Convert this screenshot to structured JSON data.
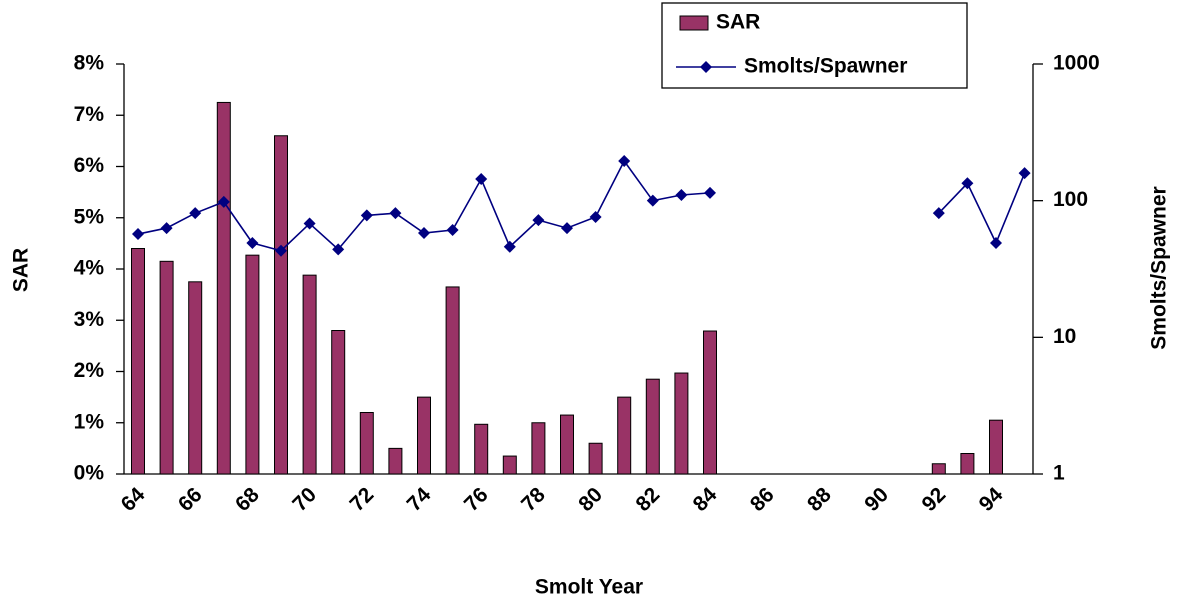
{
  "chart_data": {
    "type": "bar-line",
    "x_label": "Smolt Year",
    "y_label": "SAR",
    "y2_label": "Smolts/Spawner",
    "categories": [
      "64",
      null,
      "66",
      null,
      "68",
      null,
      "70",
      null,
      "72",
      null,
      "74",
      null,
      "76",
      null,
      "78",
      null,
      "80",
      null,
      "82",
      null,
      "84",
      null,
      "86",
      null,
      "88",
      null,
      "90",
      null,
      "92",
      null,
      "94",
      null
    ],
    "series": [
      {
        "name": "SAR",
        "type": "bar",
        "color": "#993366",
        "axis": "y",
        "values": [
          4.4,
          4.15,
          3.75,
          7.25,
          4.27,
          6.6,
          3.88,
          2.8,
          1.2,
          0.5,
          1.5,
          3.65,
          0.97,
          0.35,
          1.0,
          1.15,
          0.6,
          1.5,
          1.85,
          1.97,
          2.79,
          null,
          null,
          null,
          null,
          null,
          null,
          null,
          0.2,
          0.4,
          1.05,
          null
        ]
      },
      {
        "name": "Smolts/Spawner",
        "type": "line",
        "color": "#000080",
        "axis": "y2",
        "values": [
          57,
          63,
          81,
          98,
          49,
          43,
          68,
          44,
          78,
          81,
          58,
          61,
          144,
          46,
          72,
          63,
          76,
          195,
          100,
          110,
          114,
          null,
          null,
          null,
          null,
          null,
          null,
          null,
          81,
          134,
          49,
          159
        ]
      }
    ],
    "ylim": [
      0,
      8
    ],
    "yticks": [
      {
        "value": 0,
        "label": "0%"
      },
      {
        "value": 1,
        "label": "1%"
      },
      {
        "value": 2,
        "label": "2%"
      },
      {
        "value": 3,
        "label": "3%"
      },
      {
        "value": 4,
        "label": "4%"
      },
      {
        "value": 5,
        "label": "5%"
      },
      {
        "value": 6,
        "label": "6%"
      },
      {
        "value": 7,
        "label": "7%"
      },
      {
        "value": 8,
        "label": "8%"
      }
    ],
    "y2lim": [
      1,
      1000
    ],
    "y2_log": true,
    "y2ticks": [
      1,
      10,
      100,
      1000
    ],
    "legend": "top"
  }
}
